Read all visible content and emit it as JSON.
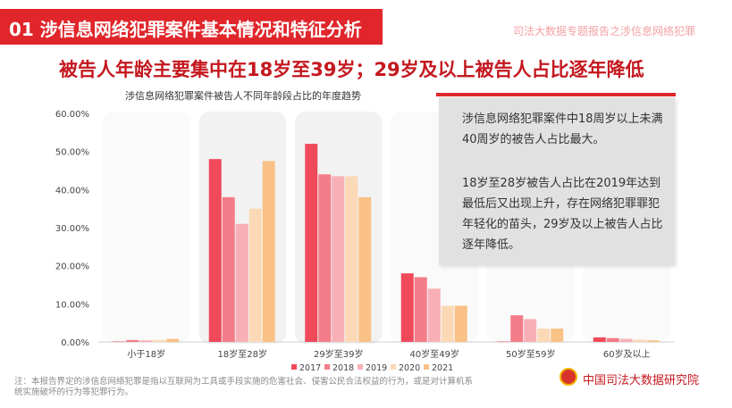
{
  "header": {
    "title": "01  涉信息网络犯罪案件基本情况和特征分析",
    "report_name": "司法大数据专题报告之涉信息网络犯罪"
  },
  "headline": "被告人年龄主要集中在18岁至39岁；29岁及以上被告人占比逐年降低",
  "note": {
    "p1": "涉信息网络犯罪案件中18周岁以上未满40周岁的被告人占比最大。",
    "p2": "18岁至28岁被告人占比在2019年达到最低后又出现上升，存在网络犯罪罪犯年轻化的苗头，29岁及以上被告人占比逐年降低。"
  },
  "footnote": "注：本报告界定的涉信息网络犯罪是指以互联网为工具或手段实施的危害社会、侵害公民合法权益的行为，或是对计算机系统实施破坏的行为等犯罪行为。",
  "org": "中国司法大数据研究院",
  "colors": {
    "accent": "#e0262b",
    "series": [
      "#f0495a",
      "#f47c89",
      "#f8b0b6",
      "#fbd9b6",
      "#f9c185"
    ],
    "highlight": "#f2f2f2"
  },
  "chart_data": {
    "type": "bar",
    "title": "涉信息网络犯罪案件被告人不同年龄段占比的年度趋势",
    "categories": [
      "小于18岁",
      "18岁至28岁",
      "29岁至39岁",
      "40岁至49岁",
      "50岁至59岁",
      "60岁及以上"
    ],
    "series": [
      {
        "name": "2017",
        "values": [
          0.1,
          48.0,
          52.0,
          18.0,
          0.1,
          1.2
        ]
      },
      {
        "name": "2018",
        "values": [
          0.5,
          38.0,
          44.0,
          17.0,
          7.0,
          1.0
        ]
      },
      {
        "name": "2019",
        "values": [
          0.4,
          31.0,
          43.5,
          14.0,
          6.0,
          0.8
        ]
      },
      {
        "name": "2020",
        "values": [
          0.5,
          35.0,
          43.5,
          9.5,
          3.5,
          0.6
        ]
      },
      {
        "name": "2021",
        "values": [
          0.8,
          47.5,
          38.0,
          9.5,
          3.5,
          0.4
        ]
      }
    ],
    "highlighted_categories": [
      "18岁至28岁",
      "29岁至39岁"
    ],
    "y_ticks": [
      "0.00%",
      "10.00%",
      "20.00%",
      "30.00%",
      "40.00%",
      "50.00%",
      "60.00%"
    ],
    "ylim": [
      0,
      60
    ],
    "grid": false,
    "legend_position": "bottom"
  }
}
